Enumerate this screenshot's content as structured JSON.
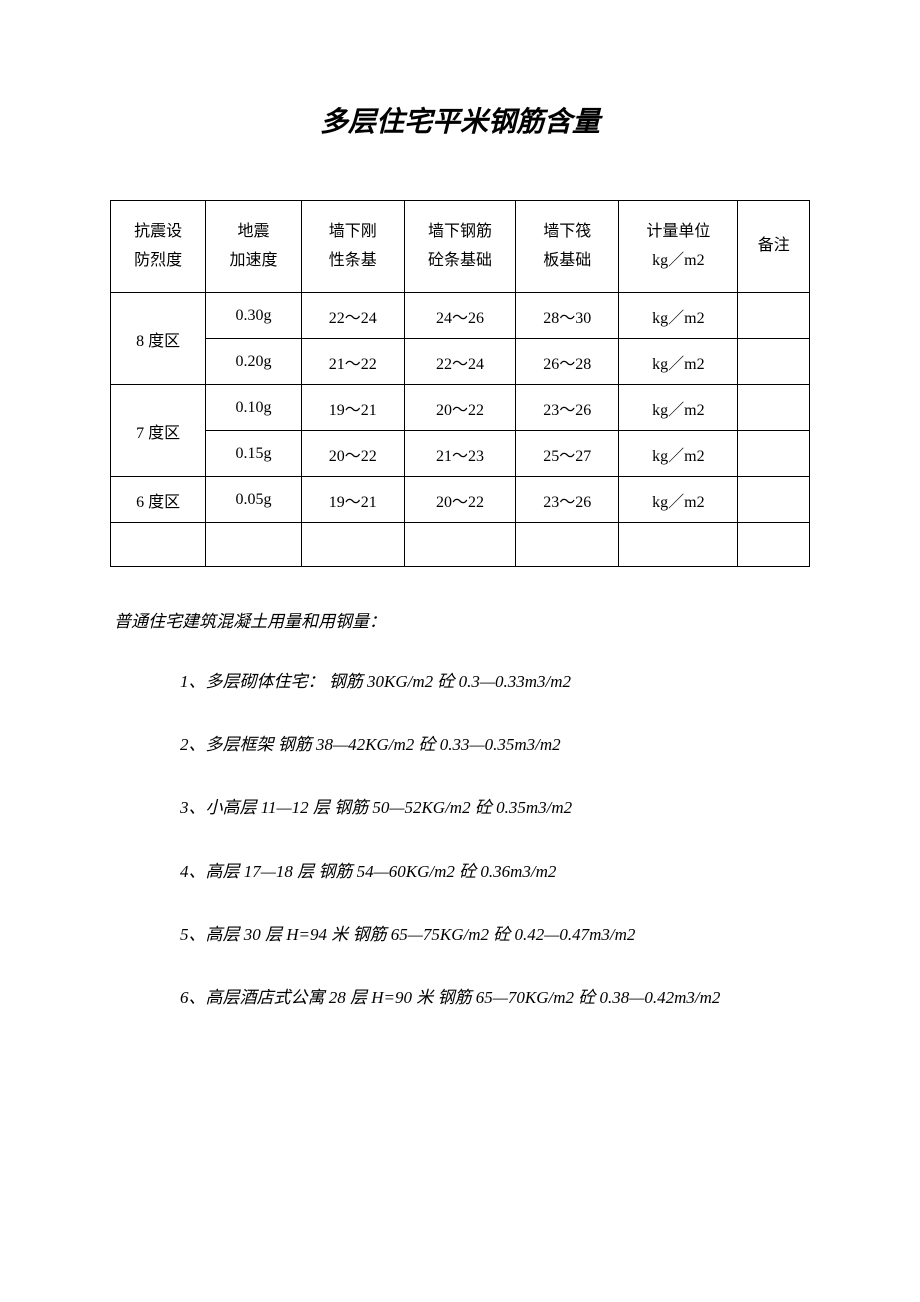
{
  "title": "多层住宅平米钢筋含量",
  "table": {
    "headers": {
      "col0_line1": "抗震设",
      "col0_line2": "防烈度",
      "col1_line1": "地震",
      "col1_line2": "加速度",
      "col2_line1": "墙下刚",
      "col2_line2": "性条基",
      "col3_line1": "墙下钢筋",
      "col3_line2": "砼条基础",
      "col4_line1": "墙下筏",
      "col4_line2": "板基础",
      "col5_line1": "计量单位",
      "col5_line2": "kg／m2",
      "col6": "备注"
    },
    "rows": [
      {
        "zone": "8 度区",
        "rowspan": 2,
        "cells": [
          "0.30g",
          "22～24",
          "24～26",
          "28～30",
          "kg／m2",
          ""
        ]
      },
      {
        "cells": [
          "0.20g",
          "21～22",
          "22～24",
          "26～28",
          "kg／m2",
          ""
        ]
      },
      {
        "zone": "7 度区",
        "rowspan": 2,
        "cells": [
          "0.10g",
          "19～21",
          "20～22",
          "23～26",
          "kg／m2",
          ""
        ]
      },
      {
        "cells": [
          "0.15g",
          "20～22",
          "21～23",
          "25～27",
          "kg／m2",
          ""
        ]
      },
      {
        "zone": "6 度区",
        "rowspan": 1,
        "cells": [
          "0.05g",
          "19～21",
          "20～22",
          "23～26",
          "kg／m2",
          ""
        ]
      }
    ],
    "empty_row_cols": 7
  },
  "section_heading": "普通住宅建筑混凝土用量和用钢量：",
  "items": [
    "1、多层砌体住宅：  钢筋 30KG/m2  砼 0.3—0.33m3/m2",
    "2、多层框架  钢筋 38—42KG/m2  砼 0.33—0.35m3/m2",
    "3、小高层 11—12 层  钢筋 50—52KG/m2  砼 0.35m3/m2",
    "4、高层 17—18 层  钢筋 54—60KG/m2  砼 0.36m3/m2",
    "5、高层 30 层 H=94 米  钢筋 65—75KG/m2  砼 0.42—0.47m3/m2",
    "6、高层酒店式公寓 28 层 H=90 米  钢筋 65—70KG/m2  砼 0.38—0.42m3/m2"
  ]
}
